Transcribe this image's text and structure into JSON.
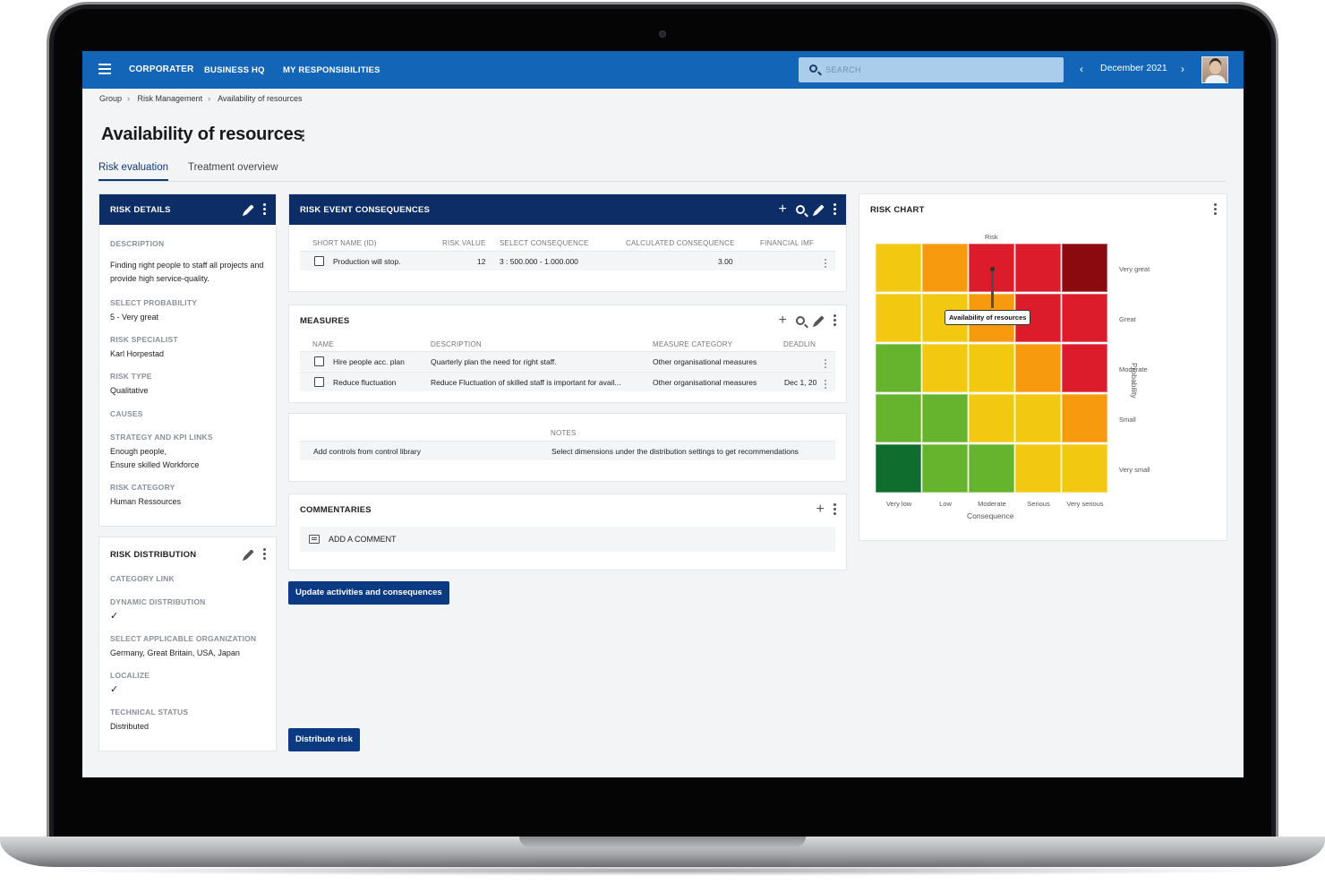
{
  "app": {
    "brand": "CORPORATER",
    "nav": [
      "BUSINESS HQ",
      "MY RESPONSIBILITIES"
    ],
    "search_placeholder": "SEARCH",
    "period": "December 2021"
  },
  "breadcrumb": [
    "Group",
    "Risk Management",
    "Availability of resources"
  ],
  "page_title": "Availability of resources",
  "tabs": [
    "Risk evaluation",
    "Treatment overview"
  ],
  "risk_details": {
    "header": "RISK DETAILS",
    "fields": [
      {
        "label": "DESCRIPTION",
        "value": "Finding right people to staff all projects and provide high service-quality."
      },
      {
        "label": "SELECT PROBABILITY",
        "value": "5 - Very great"
      },
      {
        "label": "RISK SPECIALIST",
        "value": "Karl Horpestad"
      },
      {
        "label": "RISK TYPE",
        "value": "Qualitative"
      },
      {
        "label": "CAUSES",
        "value": ""
      },
      {
        "label": "STRATEGY AND KPI LINKS",
        "value": "Enough people,"
      },
      {
        "label": "STRATEGY AND KPI LINKS 2",
        "value": "Ensure skilled Workforce"
      },
      {
        "label": "RISK CATEGORY",
        "value": "Human Ressources"
      }
    ]
  },
  "risk_distribution": {
    "header": "RISK DISTRIBUTION",
    "category_link": "CATEGORY LINK",
    "dynamic_distribution": "DYNAMIC DISTRIBUTION",
    "check": "✓",
    "org_label": "SELECT APPLICABLE ORGANIZATION",
    "org_value": "Germany, Great Britain, USA, Japan",
    "localize": "LOCALIZE",
    "tech_status_label": "TECHNICAL STATUS",
    "tech_status_value": "Distributed"
  },
  "consequences": {
    "header": "RISK EVENT CONSEQUENCES",
    "columns": [
      "SHORT NAME (ID)",
      "RISK VALUE",
      "SELECT CONSEQUENCE",
      "CALCULATED CONSEQUENCE",
      "FINANCIAL IMF"
    ],
    "rows": [
      {
        "name": "Production will stop.",
        "risk_value": "12",
        "consequence": "3 : 500.000 - 1.000.000",
        "calculated": "3.00"
      }
    ]
  },
  "measures": {
    "header": "MEASURES",
    "columns": [
      "NAME",
      "DESCRIPTION",
      "MEASURE CATEGORY",
      "DEADLIN"
    ],
    "rows": [
      {
        "name": "Hire people acc. plan",
        "description": "Quarterly plan the need for right staff.",
        "category": "Other organisational measures",
        "deadline": ""
      },
      {
        "name": "Reduce fluctuation",
        "description": "Reduce Fluctuation of skilled staff is important for avail...",
        "category": "Other organisational measures",
        "deadline": "Dec 1, 20"
      }
    ]
  },
  "notes": {
    "header": "NOTES",
    "left": "Add controls from control library",
    "right": "Select dimensions under the distribution settings to get recommendations"
  },
  "commentaries": {
    "header": "COMMENTARIES",
    "placeholder": "ADD A COMMENT"
  },
  "buttons": {
    "update": "Update activities and consequences",
    "distribute": "Distribute risk"
  },
  "risk_chart": {
    "header": "RISK CHART",
    "top_label": "Risk",
    "x_title": "Consequence",
    "y_title": "Probability",
    "x_labels": [
      "Very low",
      "Low",
      "Moderate",
      "Serious",
      "Very serious"
    ],
    "y_labels": [
      "Very great",
      "Great",
      "Moderate",
      "Small",
      "Very small"
    ],
    "tooltip": "Availability of resources",
    "colors": {
      "dark_green": "#0f6e2e",
      "green": "#66b32e",
      "yellow": "#f2c811",
      "orange": "#f79a0d",
      "red": "#dc1c2a",
      "dark_red": "#8b0a0f"
    },
    "grid": [
      [
        "yellow",
        "orange",
        "red",
        "red",
        "dark_red"
      ],
      [
        "yellow",
        "yellow",
        "orange",
        "red",
        "red"
      ],
      [
        "green",
        "yellow",
        "yellow",
        "orange",
        "red"
      ],
      [
        "green",
        "green",
        "yellow",
        "yellow",
        "orange"
      ],
      [
        "dark_green",
        "green",
        "green",
        "yellow",
        "yellow"
      ]
    ],
    "marker": {
      "consequence": "Moderate",
      "probability": "Very great"
    }
  }
}
